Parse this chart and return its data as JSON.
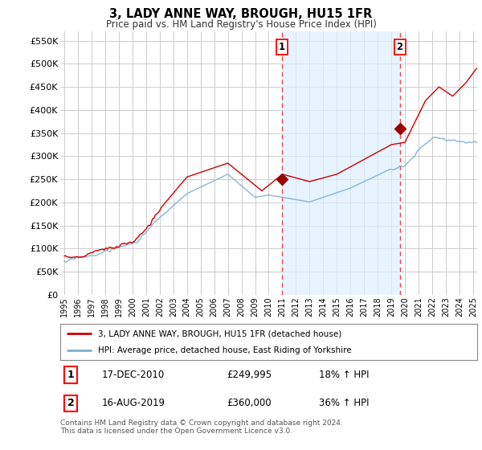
{
  "title": "3, LADY ANNE WAY, BROUGH, HU15 1FR",
  "subtitle": "Price paid vs. HM Land Registry's House Price Index (HPI)",
  "ylabel_ticks": [
    "£0",
    "£50K",
    "£100K",
    "£150K",
    "£200K",
    "£250K",
    "£300K",
    "£350K",
    "£400K",
    "£450K",
    "£500K",
    "£550K"
  ],
  "ytick_values": [
    0,
    50000,
    100000,
    150000,
    200000,
    250000,
    300000,
    350000,
    400000,
    450000,
    500000,
    550000
  ],
  "ylim": [
    0,
    570000
  ],
  "xlim_start": 1994.7,
  "xlim_end": 2025.3,
  "xticks": [
    1995,
    1996,
    1997,
    1998,
    1999,
    2000,
    2001,
    2002,
    2003,
    2004,
    2005,
    2006,
    2007,
    2008,
    2009,
    2010,
    2011,
    2012,
    2013,
    2014,
    2015,
    2016,
    2017,
    2018,
    2019,
    2020,
    2021,
    2022,
    2023,
    2024,
    2025
  ],
  "transaction1_x": 2010.96,
  "transaction1_y": 249995,
  "transaction1_label": "1",
  "transaction1_date": "17-DEC-2010",
  "transaction1_price": "£249,995",
  "transaction1_hpi": "18% ↑ HPI",
  "transaction2_x": 2019.62,
  "transaction2_y": 360000,
  "transaction2_label": "2",
  "transaction2_date": "16-AUG-2019",
  "transaction2_price": "£360,000",
  "transaction2_hpi": "36% ↑ HPI",
  "legend_line1": "3, LADY ANNE WAY, BROUGH, HU15 1FR (detached house)",
  "legend_line2": "HPI: Average price, detached house, East Riding of Yorkshire",
  "footer": "Contains HM Land Registry data © Crown copyright and database right 2024.\nThis data is licensed under the Open Government Licence v3.0.",
  "line_color_red": "#cc0000",
  "line_color_blue": "#7bafd4",
  "plot_bg": "#ffffff",
  "shade_color": "#ddeeff",
  "grid_color": "#cccccc",
  "vline_color": "#ee4444",
  "marker_color_red": "#990000"
}
